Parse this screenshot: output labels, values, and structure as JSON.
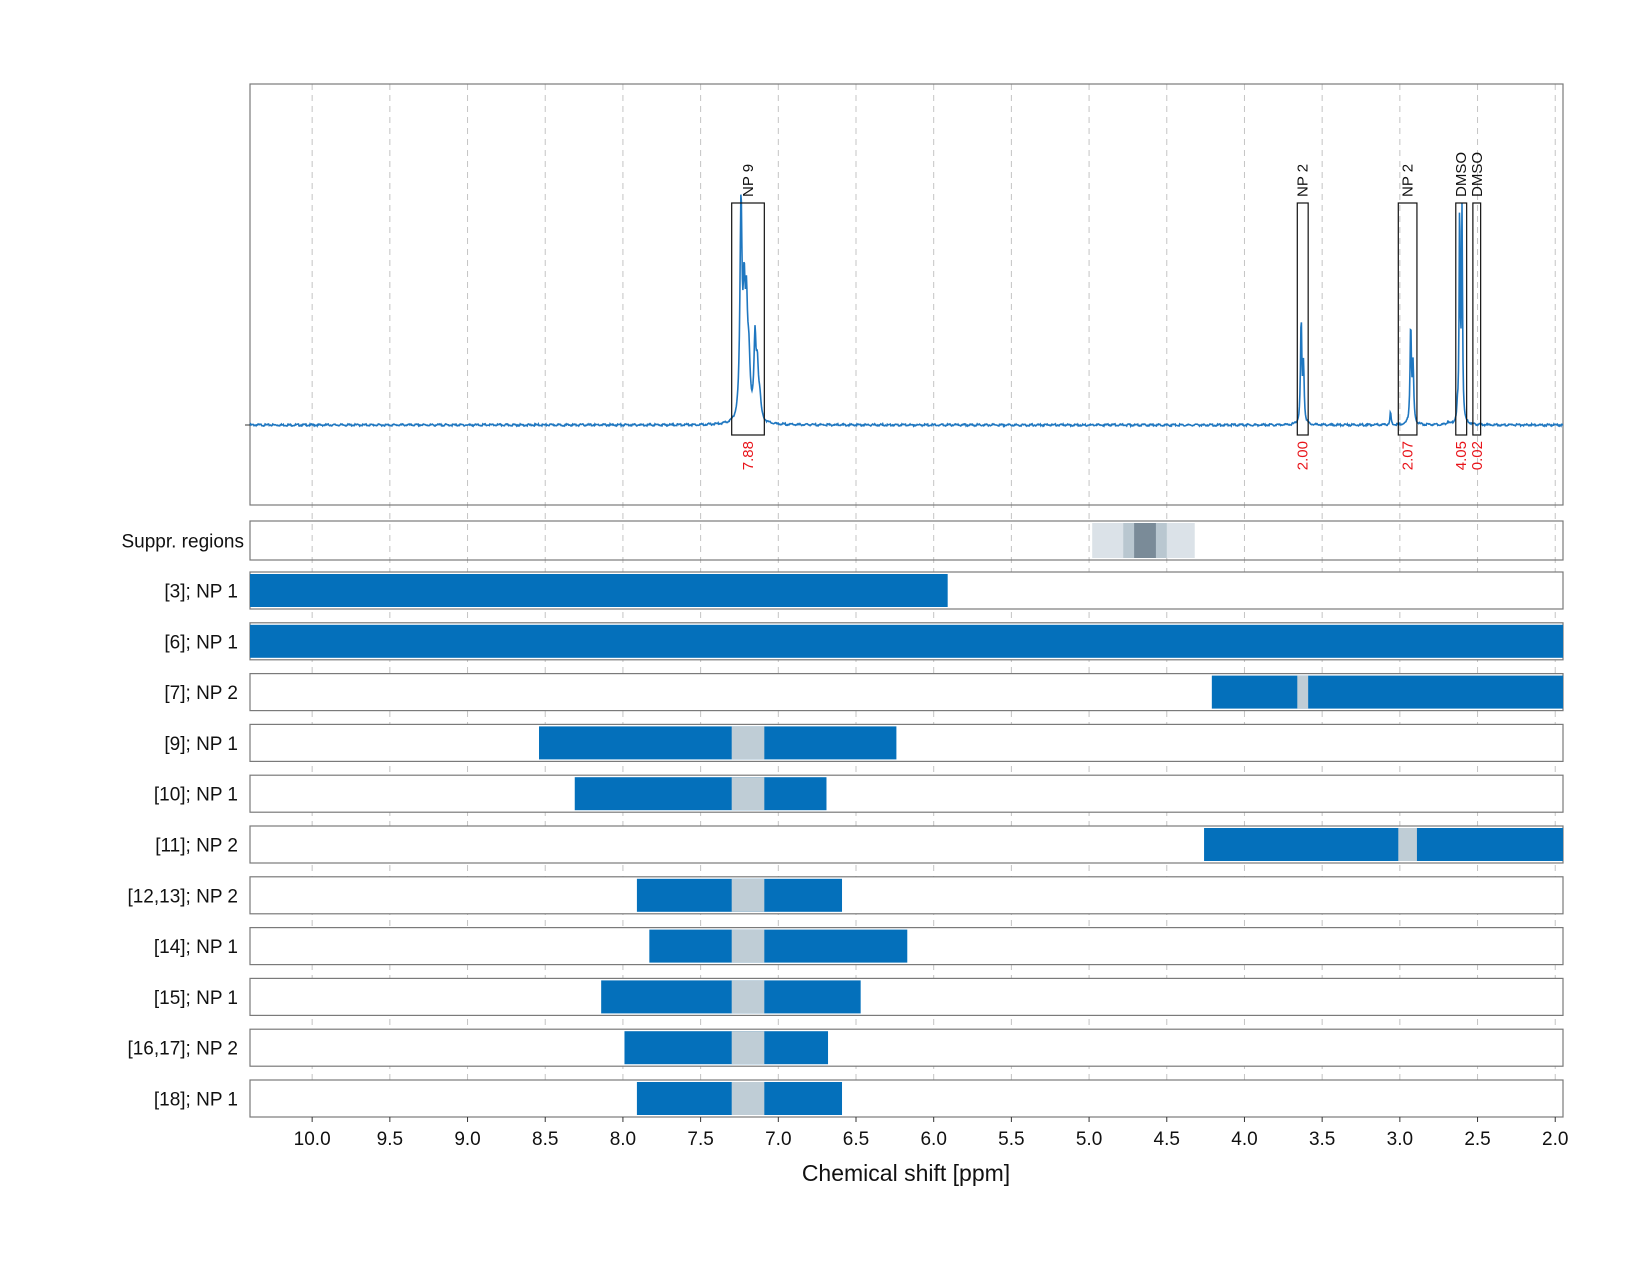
{
  "chart_data": {
    "type": "nmr-spectrum-with-range-bars",
    "xlabel": "Chemical shift [ppm]",
    "xlim": [
      10.4,
      1.95
    ],
    "x_direction": "reversed",
    "xticks": [
      10.0,
      9.5,
      9.0,
      8.5,
      8.0,
      7.5,
      7.0,
      6.5,
      6.0,
      5.5,
      5.0,
      4.5,
      4.0,
      3.5,
      3.0,
      2.5,
      2.0
    ],
    "xtick_labels": [
      "10.0",
      "9.5",
      "9.0",
      "8.5",
      "8.0",
      "7.5",
      "7.0",
      "6.5",
      "6.0",
      "5.5",
      "5.0",
      "4.5",
      "4.0",
      "3.5",
      "3.0",
      "2.5",
      "2.0"
    ],
    "grid": "vertical dashed",
    "colors": {
      "spectrum": "#1f77c0",
      "range_bar": "#0470bb",
      "overlap": "#bfcdd6",
      "suppr_light": "#dbe2e8",
      "suppr_mid": "#b9c7d0",
      "suppr_dark": "#7a8b98",
      "integral_text": "#e8141a"
    },
    "spectrum": {
      "baseline": 0.0,
      "ylim": [
        -0.2,
        1.0
      ],
      "peaks": [
        {
          "center": 7.24,
          "height": 0.82,
          "width": 0.008
        },
        {
          "center": 7.22,
          "height": 0.42,
          "width": 0.008
        },
        {
          "center": 7.205,
          "height": 0.36,
          "width": 0.008
        },
        {
          "center": 7.19,
          "height": 0.22,
          "width": 0.01
        },
        {
          "center": 7.15,
          "height": 0.3,
          "width": 0.008
        },
        {
          "center": 7.135,
          "height": 0.18,
          "width": 0.008
        },
        {
          "center": 7.12,
          "height": 0.08,
          "width": 0.01
        },
        {
          "center": 3.635,
          "height": 0.4,
          "width": 0.005
        },
        {
          "center": 3.62,
          "height": 0.22,
          "width": 0.005
        },
        {
          "center": 3.06,
          "height": 0.05,
          "width": 0.004
        },
        {
          "center": 2.93,
          "height": 0.38,
          "width": 0.005
        },
        {
          "center": 2.915,
          "height": 0.22,
          "width": 0.005
        },
        {
          "center": 2.615,
          "height": 0.84,
          "width": 0.004
        },
        {
          "center": 2.6,
          "height": 0.8,
          "width": 0.004
        },
        {
          "center": 2.63,
          "height": 0.04,
          "width": 0.004
        },
        {
          "center": 2.69,
          "height": 0.015,
          "width": 0.004
        }
      ],
      "annotations": [
        {
          "label": "NP 9",
          "integral": "7.88",
          "from": 7.3,
          "to": 7.09
        },
        {
          "label": "NP 2",
          "integral": "2.00",
          "from": 3.66,
          "to": 3.59
        },
        {
          "label": "NP 2",
          "integral": "2.07",
          "from": 3.01,
          "to": 2.89
        },
        {
          "label": "DMSO",
          "integral": "4.05",
          "from": 2.64,
          "to": 2.57
        },
        {
          "label": "DMSO",
          "integral": "0.02",
          "from": 2.53,
          "to": 2.48
        }
      ]
    },
    "suppressed_regions": {
      "label": "Suppr. regions",
      "bands": [
        {
          "from": 4.98,
          "to": 4.32,
          "level": "light"
        },
        {
          "from": 4.78,
          "to": 4.5,
          "level": "mid"
        },
        {
          "from": 4.71,
          "to": 4.57,
          "level": "dark"
        }
      ]
    },
    "rows": [
      {
        "label": "[3]; NP 1",
        "from": 10.4,
        "to": 5.91,
        "overlaps": []
      },
      {
        "label": "[6]; NP 1",
        "from": 10.4,
        "to": 1.95,
        "overlaps": []
      },
      {
        "label": "[7]; NP 2",
        "from": 4.21,
        "to": 1.95,
        "overlaps": [
          [
            3.66,
            3.59
          ]
        ]
      },
      {
        "label": "[9]; NP 1",
        "from": 8.54,
        "to": 6.24,
        "overlaps": [
          [
            7.3,
            7.09
          ]
        ]
      },
      {
        "label": "[10]; NP 1",
        "from": 8.31,
        "to": 6.69,
        "overlaps": [
          [
            7.3,
            7.09
          ]
        ]
      },
      {
        "label": "[11]; NP 2",
        "from": 4.26,
        "to": 1.95,
        "overlaps": [
          [
            3.01,
            2.89
          ]
        ]
      },
      {
        "label": "[12,13]; NP 2",
        "from": 7.91,
        "to": 6.59,
        "overlaps": [
          [
            7.3,
            7.09
          ]
        ]
      },
      {
        "label": "[14]; NP 1",
        "from": 7.83,
        "to": 6.17,
        "overlaps": [
          [
            7.3,
            7.09
          ]
        ]
      },
      {
        "label": "[15]; NP 1",
        "from": 8.14,
        "to": 6.47,
        "overlaps": [
          [
            7.3,
            7.09
          ]
        ]
      },
      {
        "label": "[16,17]; NP 2",
        "from": 7.99,
        "to": 6.68,
        "overlaps": [
          [
            7.3,
            7.09
          ]
        ]
      },
      {
        "label": "[18]; NP 1",
        "from": 7.91,
        "to": 6.59,
        "overlaps": [
          [
            7.3,
            7.09
          ]
        ]
      }
    ]
  }
}
